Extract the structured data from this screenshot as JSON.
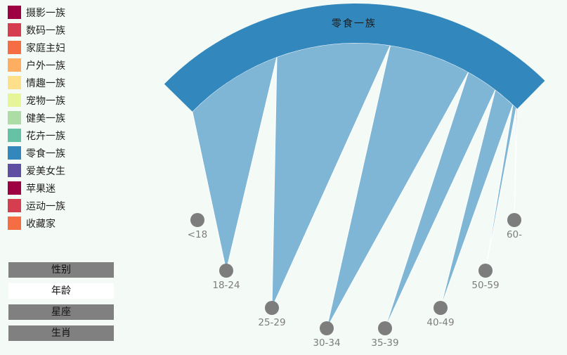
{
  "legend": {
    "items": [
      {
        "label": "摄影一族",
        "color": "#9e0142"
      },
      {
        "label": "数码一族",
        "color": "#d53e4f"
      },
      {
        "label": "家庭主妇",
        "color": "#f46d43"
      },
      {
        "label": "户外一族",
        "color": "#fdae61"
      },
      {
        "label": "情趣一族",
        "color": "#fee08b"
      },
      {
        "label": "宠物一族",
        "color": "#e6f598"
      },
      {
        "label": "健美一族",
        "color": "#abdda4"
      },
      {
        "label": "花卉一族",
        "color": "#66c2a5"
      },
      {
        "label": "零食一族",
        "color": "#3288bd"
      },
      {
        "label": "爱美女生",
        "color": "#5e4fa2"
      },
      {
        "label": "苹果迷",
        "color": "#9e0142"
      },
      {
        "label": "运动一族",
        "color": "#d53e4f"
      },
      {
        "label": "收藏家",
        "color": "#f46d43"
      }
    ]
  },
  "buttons": [
    {
      "label": "性别",
      "active": false
    },
    {
      "label": "年龄",
      "active": true
    },
    {
      "label": "星座",
      "active": false
    },
    {
      "label": "生肖",
      "active": false
    }
  ],
  "chart_data": {
    "type": "chord",
    "selected_group": "零食一族",
    "group_color": "#3288bd",
    "ribbon_color": "#7fb6d6",
    "node_color": "#7d7d7d",
    "nodes": [
      "<18",
      "18-24",
      "25-29",
      "30-34",
      "35-39",
      "40-49",
      "50-59",
      "60-"
    ],
    "values": [
      0,
      22,
      25,
      18,
      7,
      5,
      1,
      0.3
    ]
  }
}
